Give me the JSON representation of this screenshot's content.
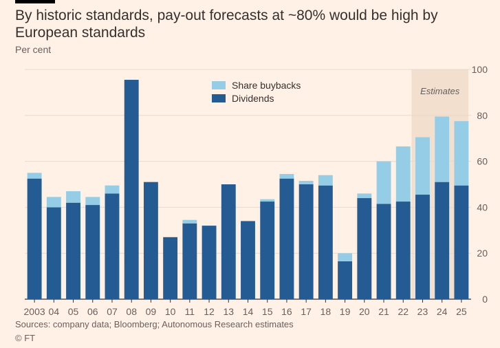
{
  "title": "By historic standards, pay-out forecasts at ~80% would be high by European standards",
  "subtitle": "Per cent",
  "source": "Sources: company data; Bloomberg; Autonomous Research estimates",
  "credit": "© FT",
  "colors": {
    "background": "#fff1e5",
    "dividends": "#255b93",
    "buybacks": "#96cde6",
    "estimates_band": "#f2dfce",
    "grid": "#e6d9ce",
    "axis": "#33302e",
    "text": "#66605c"
  },
  "chart_data": {
    "type": "bar",
    "stacked": true,
    "categories": [
      "2003",
      "04",
      "05",
      "06",
      "07",
      "08",
      "09",
      "10",
      "11",
      "12",
      "13",
      "14",
      "15",
      "16",
      "17",
      "18",
      "19",
      "20",
      "21",
      "22",
      "23",
      "24",
      "25"
    ],
    "series": [
      {
        "name": "Dividends",
        "color": "#255b93",
        "values": [
          52.5,
          40,
          42,
          41,
          46,
          95.5,
          51,
          27,
          33,
          32,
          50,
          34,
          42.5,
          52.5,
          50,
          49.5,
          16.5,
          44,
          41.5,
          42.5,
          45.5,
          51,
          49.5
        ]
      },
      {
        "name": "Share buybacks",
        "color": "#96cde6",
        "values": [
          2.5,
          4.5,
          5,
          3.5,
          3.5,
          0,
          0,
          0,
          1.5,
          0,
          0,
          0,
          1,
          2,
          1.5,
          4.5,
          3.5,
          2,
          18.5,
          24,
          25,
          28.5,
          28
        ]
      }
    ],
    "ylim": [
      0,
      100
    ],
    "yticks": [
      0,
      20,
      40,
      60,
      80,
      100
    ],
    "y_axis_side": "right",
    "grid": true,
    "legend_placement": "top-center",
    "legend_order": [
      "Share buybacks",
      "Dividends"
    ],
    "annotation": {
      "label": "Estimates",
      "from_category": "23",
      "to_category": "25"
    }
  }
}
